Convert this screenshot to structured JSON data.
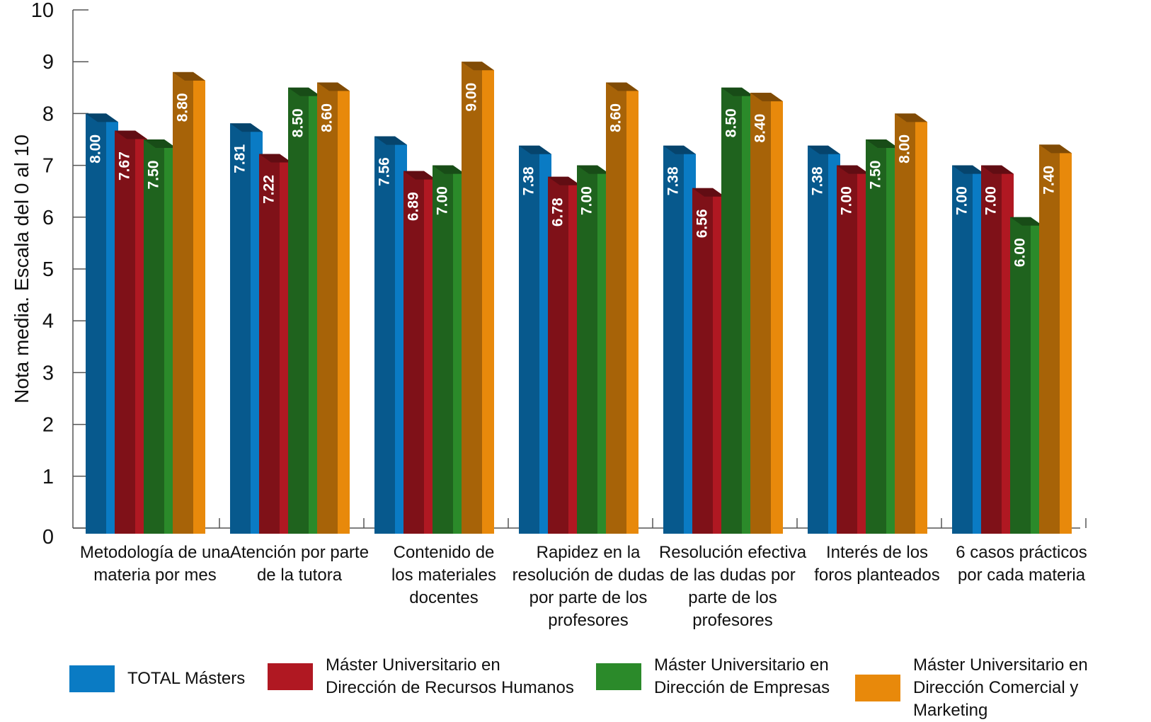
{
  "chart_data": {
    "type": "bar",
    "ylabel": "Nota media. Escala del 0 al 10",
    "ylim": [
      0,
      10
    ],
    "yticks": [
      "0",
      "1",
      "2",
      "3",
      "4",
      "5",
      "6",
      "7",
      "8",
      "9",
      "10"
    ],
    "categories": [
      "Metodología de una\nmateria por mes",
      "Atención por parte\nde la tutora",
      "Contenido de\nlos materiales\ndocentes",
      "Rapidez en la\nresolución de dudas\npor parte de los\nprofesores",
      "Resolución efectiva\nde las dudas por\nparte de los\nprofesores",
      "Interés de los\nforos planteados",
      "6 casos prácticos\npor cada materia"
    ],
    "series": [
      {
        "name": "TOTAL Másters",
        "color": "#0a7bc4",
        "values": [
          8.0,
          7.81,
          7.56,
          7.38,
          7.38,
          7.38,
          7.0
        ],
        "labels": [
          "8.00",
          "7.81",
          "7.56",
          "7.38",
          "7.38",
          "7.38",
          "7.00"
        ]
      },
      {
        "name": "Máster Universitario en\nDirección de Recursos Humanos",
        "color": "#b01822",
        "values": [
          7.67,
          7.22,
          6.89,
          6.78,
          6.56,
          7.0,
          7.0
        ],
        "labels": [
          "7.67",
          "7.22",
          "6.89",
          "6.78",
          "6.56",
          "7.00",
          "7.00"
        ]
      },
      {
        "name": "Máster Universitario en\nDirección de Empresas",
        "color": "#2b8a2a",
        "values": [
          7.5,
          8.5,
          7.0,
          7.0,
          8.5,
          7.5,
          6.0
        ],
        "labels": [
          "7.50",
          "8.50",
          "7.00",
          "7.00",
          "8.50",
          "7.50",
          "6.00"
        ]
      },
      {
        "name": "Máster Universitario en\nDirección Comercial y Marketing",
        "color": "#e8890b",
        "values": [
          8.8,
          8.6,
          9.0,
          8.6,
          8.4,
          8.0,
          7.4
        ],
        "labels": [
          "8.80",
          "8.60",
          "9.00",
          "8.60",
          "8.40",
          "8.00",
          "7.40"
        ]
      }
    ],
    "grid": false,
    "legend_position": "bottom"
  }
}
